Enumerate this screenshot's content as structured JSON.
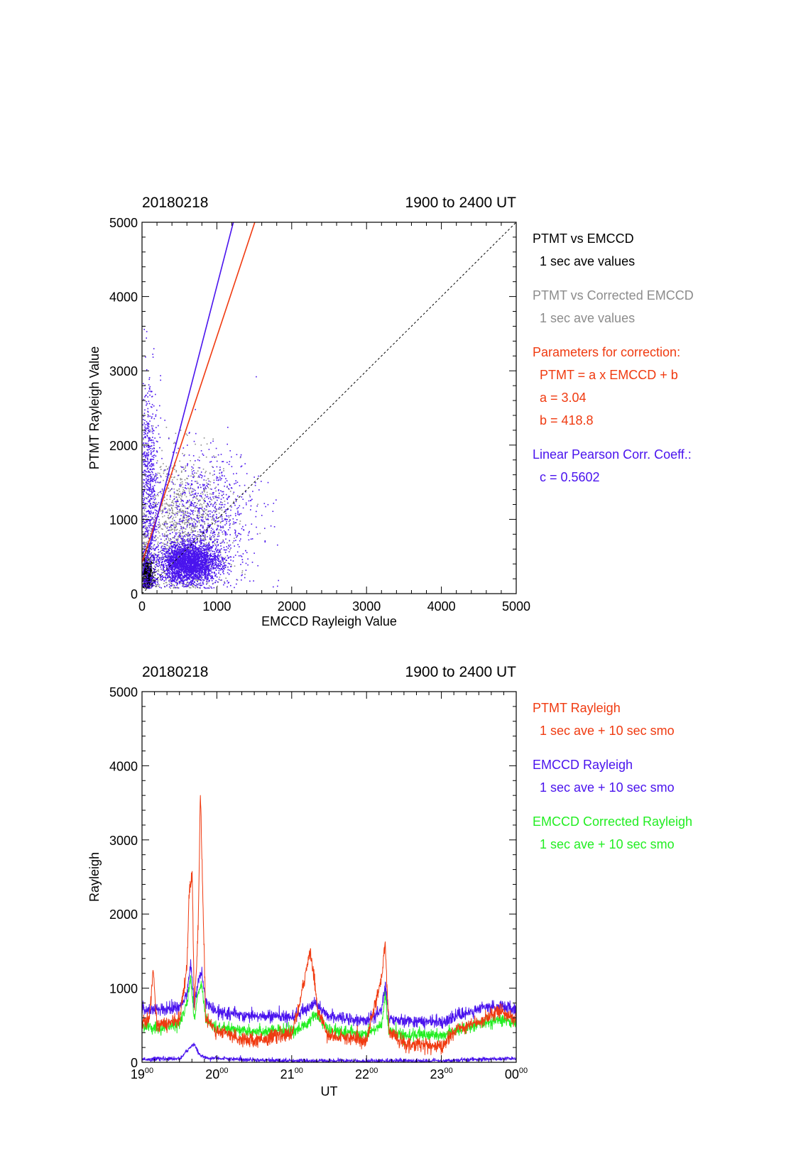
{
  "colors": {
    "black": "#000000",
    "gray": "#8c8c8c",
    "red": "#f03a10",
    "blue": "#4a14ee",
    "green": "#22ee22"
  },
  "chart_data": [
    {
      "type": "scatter",
      "title_left": "20180218",
      "title_right": "1900 to 2400 UT",
      "xlabel": "EMCCD Rayleigh Value",
      "ylabel": "PTMT Rayleigh Value",
      "xlim": [
        0,
        5000
      ],
      "ylim": [
        0,
        5000
      ],
      "xticks": [
        "0",
        "1000",
        "2000",
        "3000",
        "4000",
        "5000"
      ],
      "yticks": [
        "0",
        "1000",
        "2000",
        "3000",
        "4000",
        "5000"
      ],
      "lines": [
        {
          "name": "identity",
          "color": "black",
          "dashed": true,
          "slope": 1,
          "intercept": 0
        },
        {
          "name": "correction",
          "color": "red",
          "slope": 3.04,
          "intercept": 418.8
        },
        {
          "name": "pearson",
          "color": "blue",
          "slope": 3.9,
          "intercept": 240
        }
      ],
      "clusters": [
        {
          "color": "black",
          "cx": 60,
          "cy": 250,
          "sx": 40,
          "sy": 120,
          "n": 700
        },
        {
          "color": "gray",
          "cx": 500,
          "cy": 850,
          "sx": 320,
          "sy": 500,
          "n": 1200
        },
        {
          "color": "blue",
          "cx": 620,
          "cy": 420,
          "sx": 200,
          "sy": 130,
          "n": 3500
        },
        {
          "color": "blue",
          "cx": 850,
          "cy": 1000,
          "sx": 350,
          "sy": 450,
          "n": 900
        },
        {
          "color": "blue",
          "cx": 90,
          "cy": 1300,
          "sx": 60,
          "sy": 800,
          "n": 700
        }
      ],
      "legend": [
        {
          "text": "PTMT vs EMCCD",
          "color": "black"
        },
        {
          "text": "1 sec ave values",
          "color": "black",
          "indent": true
        },
        {
          "text": "PTMT vs Corrected EMCCD",
          "color": "gray"
        },
        {
          "text": "1 sec ave values",
          "color": "gray",
          "indent": true
        },
        {
          "text": "Parameters for correction:",
          "color": "red"
        },
        {
          "text": "PTMT = a x EMCCD + b",
          "color": "red",
          "indent": true
        },
        {
          "text": "a = 3.04",
          "color": "red",
          "indent": true
        },
        {
          "text": "b =  418.8",
          "color": "red",
          "indent": true
        },
        {
          "text": "Linear Pearson Corr. Coeff.:",
          "color": "blue"
        },
        {
          "text": "c = 0.5602",
          "color": "blue",
          "indent": true
        }
      ]
    },
    {
      "type": "line",
      "title_left": "20180218",
      "title_right": "1900 to 2400 UT",
      "xlabel": "UT",
      "ylabel": "Rayleigh",
      "xlim": [
        19,
        24
      ],
      "ylim": [
        0,
        5000
      ],
      "xticks": [
        {
          "base": "19",
          "sup": "00"
        },
        {
          "base": "20",
          "sup": "00"
        },
        {
          "base": "21",
          "sup": "00"
        },
        {
          "base": "22",
          "sup": "00"
        },
        {
          "base": "23",
          "sup": "00"
        },
        {
          "base": "00",
          "sup": "00"
        }
      ],
      "yticks": [
        "0",
        "1000",
        "2000",
        "3000",
        "4000",
        "5000"
      ],
      "series": [
        {
          "name": "EMCCD Rayleigh",
          "color": "blue",
          "noise": 60,
          "points": [
            [
              19.0,
              720
            ],
            [
              19.3,
              700
            ],
            [
              19.5,
              760
            ],
            [
              19.6,
              900
            ],
            [
              19.65,
              1350
            ],
            [
              19.7,
              750
            ],
            [
              19.75,
              1100
            ],
            [
              19.8,
              1200
            ],
            [
              19.85,
              800
            ],
            [
              20.0,
              680
            ],
            [
              20.5,
              620
            ],
            [
              21.0,
              620
            ],
            [
              21.2,
              700
            ],
            [
              21.3,
              800
            ],
            [
              21.5,
              620
            ],
            [
              22.0,
              560
            ],
            [
              22.2,
              700
            ],
            [
              22.25,
              1050
            ],
            [
              22.3,
              600
            ],
            [
              22.5,
              560
            ],
            [
              23.0,
              540
            ],
            [
              23.2,
              620
            ],
            [
              23.5,
              720
            ],
            [
              23.8,
              760
            ],
            [
              24.0,
              720
            ]
          ]
        },
        {
          "name": "EMCCD Rayleigh low",
          "color": "blue",
          "noise": 20,
          "points": [
            [
              19.0,
              40
            ],
            [
              19.5,
              50
            ],
            [
              19.6,
              150
            ],
            [
              19.7,
              250
            ],
            [
              19.75,
              120
            ],
            [
              19.85,
              60
            ],
            [
              20.5,
              30
            ],
            [
              21.0,
              20
            ],
            [
              22.0,
              20
            ],
            [
              23.0,
              20
            ],
            [
              23.5,
              40
            ],
            [
              24.0,
              50
            ]
          ]
        },
        {
          "name": "EMCCD Corrected Rayleigh",
          "color": "green",
          "noise": 60,
          "points": [
            [
              19.0,
              480
            ],
            [
              19.3,
              470
            ],
            [
              19.5,
              520
            ],
            [
              19.6,
              800
            ],
            [
              19.65,
              1150
            ],
            [
              19.7,
              550
            ],
            [
              19.75,
              950
            ],
            [
              19.8,
              1050
            ],
            [
              19.85,
              600
            ],
            [
              20.0,
              460
            ],
            [
              20.5,
              420
            ],
            [
              21.0,
              420
            ],
            [
              21.2,
              500
            ],
            [
              21.3,
              650
            ],
            [
              21.5,
              430
            ],
            [
              22.0,
              380
            ],
            [
              22.2,
              500
            ],
            [
              22.25,
              900
            ],
            [
              22.3,
              420
            ],
            [
              22.5,
              370
            ],
            [
              23.0,
              360
            ],
            [
              23.2,
              430
            ],
            [
              23.5,
              520
            ],
            [
              23.8,
              580
            ],
            [
              24.0,
              540
            ]
          ]
        },
        {
          "name": "PTMT Rayleigh",
          "color": "red",
          "noise": 70,
          "points": [
            [
              19.0,
              520
            ],
            [
              19.1,
              600
            ],
            [
              19.15,
              1250
            ],
            [
              19.2,
              500
            ],
            [
              19.5,
              560
            ],
            [
              19.6,
              1300
            ],
            [
              19.63,
              2300
            ],
            [
              19.67,
              2550
            ],
            [
              19.7,
              700
            ],
            [
              19.75,
              1800
            ],
            [
              19.78,
              3600
            ],
            [
              19.82,
              1950
            ],
            [
              19.85,
              600
            ],
            [
              20.0,
              420
            ],
            [
              20.3,
              320
            ],
            [
              20.5,
              300
            ],
            [
              21.0,
              380
            ],
            [
              21.15,
              1000
            ],
            [
              21.25,
              1500
            ],
            [
              21.35,
              700
            ],
            [
              21.5,
              350
            ],
            [
              22.0,
              300
            ],
            [
              22.2,
              1150
            ],
            [
              22.25,
              1600
            ],
            [
              22.3,
              420
            ],
            [
              22.5,
              250
            ],
            [
              23.0,
              200
            ],
            [
              23.2,
              450
            ],
            [
              23.5,
              550
            ],
            [
              23.8,
              700
            ],
            [
              24.0,
              550
            ]
          ]
        }
      ],
      "legend": [
        {
          "text": "PTMT Rayleigh",
          "color": "red"
        },
        {
          "text": "1 sec ave + 10 sec smo",
          "color": "red",
          "indent": true
        },
        {
          "text": "EMCCD Rayleigh",
          "color": "blue"
        },
        {
          "text": "1 sec ave + 10 sec smo",
          "color": "blue",
          "indent": true
        },
        {
          "text": "EMCCD Corrected Rayleigh",
          "color": "green"
        },
        {
          "text": "1 sec ave + 10 sec smo",
          "color": "green",
          "indent": true
        }
      ]
    }
  ]
}
